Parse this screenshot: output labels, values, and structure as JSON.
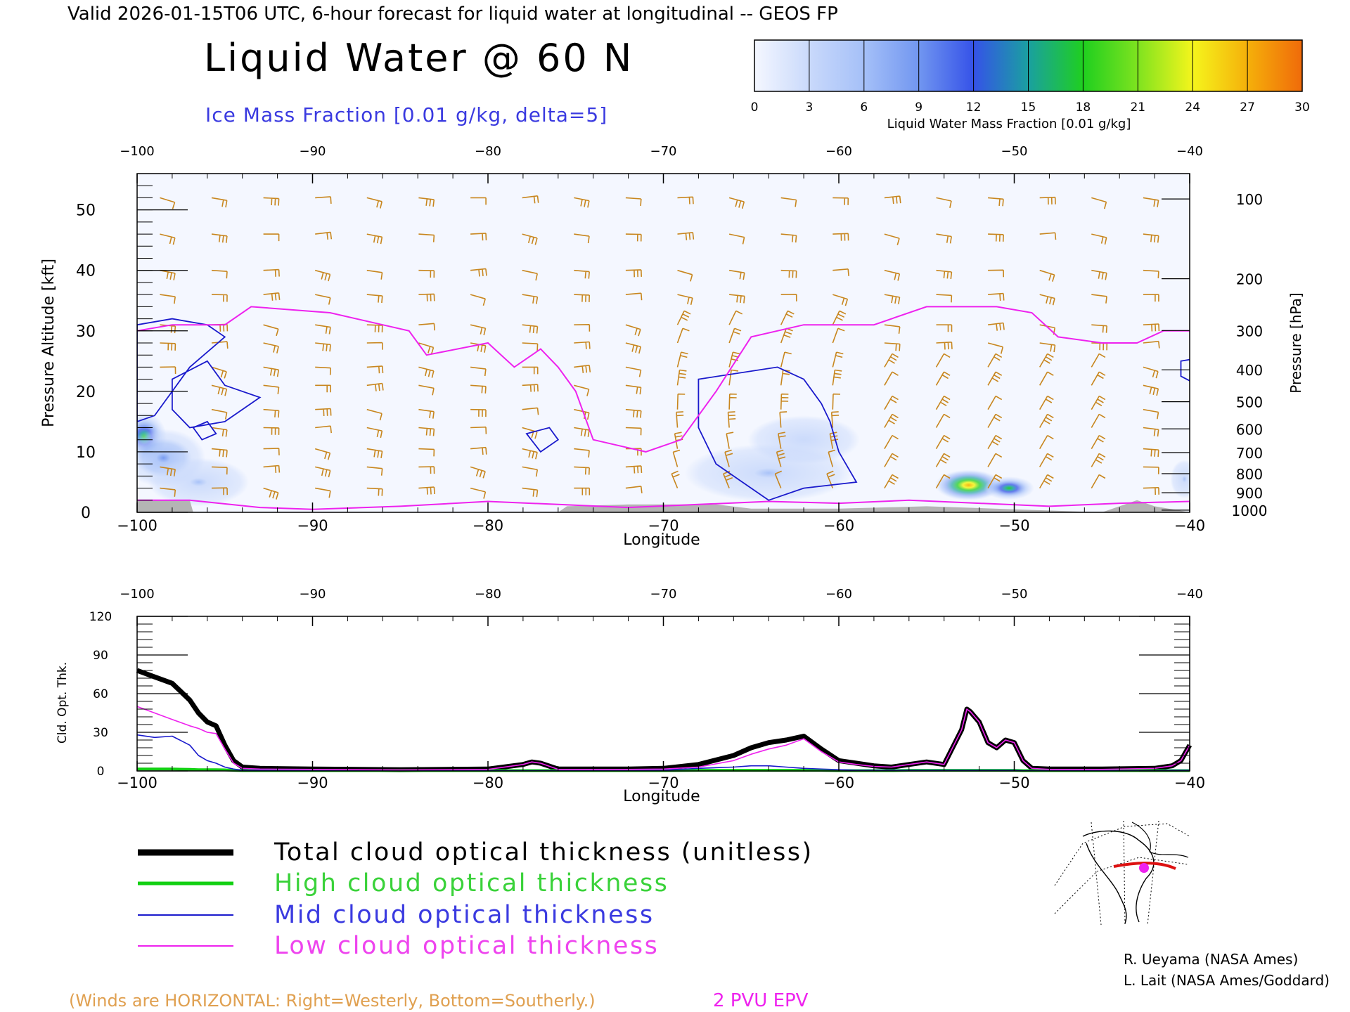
{
  "header": {
    "valid_line": "Valid 2026-01-15T06 UTC, 6-hour forecast for liquid water at longitudinal -- GEOS FP",
    "title": "Liquid Water @ 60 N",
    "subtitle": "Ice Mass Fraction [0.01 g/kg, delta=5]"
  },
  "colorbar": {
    "label": "Liquid Water Mass Fraction [0.01 g/kg]",
    "ticks": [
      "0",
      "3",
      "6",
      "9",
      "12",
      "15",
      "18",
      "21",
      "24",
      "27",
      "30"
    ],
    "colors": [
      "#f4f7ff",
      "#c9d9fb",
      "#a5c0f8",
      "#7196f0",
      "#3552e8",
      "#1aa0a0",
      "#1fcf1f",
      "#7fe31f",
      "#f5f51c",
      "#f5b00a",
      "#f06a0a",
      "#e82a0a"
    ]
  },
  "colors": {
    "ice_contour": "#1a1acc",
    "epv": "#ee22ee",
    "wind_barbs": "#c8861e",
    "total": "#000000",
    "high": "#12d012",
    "mid": "#1a1acc",
    "low": "#ee22ee",
    "terrain": "#b4b4b4"
  },
  "chart_data": [
    {
      "type": "heatmap",
      "title": "Liquid Water @ 60 N",
      "xlabel": "Longitude",
      "ylabel": "Pressure Altitude [kft]",
      "ylabel_right": "Pressure [hPa]",
      "xlim": [
        -100,
        -40
      ],
      "ylim": [
        0,
        56
      ],
      "x_ticks": [
        -100,
        -90,
        -80,
        -70,
        -60,
        -50,
        -40
      ],
      "x_tick_labels": [
        "−100",
        "−90",
        "−80",
        "−70",
        "−60",
        "−50",
        "−40"
      ],
      "y_ticks": [
        0,
        10,
        20,
        30,
        40,
        50
      ],
      "pressure_ticks": [
        100,
        200,
        300,
        400,
        500,
        600,
        700,
        800,
        900,
        1000
      ],
      "liquid_water_blobs": [
        {
          "lon": -99.6,
          "alt_kft": 12.5,
          "value": 16,
          "spread_lon": 0.8,
          "spread_alt": 2.5
        },
        {
          "lon": -98.5,
          "alt_kft": 9.0,
          "value": 7,
          "spread_lon": 1.5,
          "spread_alt": 3.0
        },
        {
          "lon": -96.5,
          "alt_kft": 5.0,
          "value": 3,
          "spread_lon": 1.8,
          "spread_alt": 2.5
        },
        {
          "lon": -64.0,
          "alt_kft": 6.5,
          "value": 3,
          "spread_lon": 3.0,
          "spread_alt": 3.0
        },
        {
          "lon": -62.0,
          "alt_kft": 12.0,
          "value": 1,
          "spread_lon": 2.0,
          "spread_alt": 2.5
        },
        {
          "lon": -52.6,
          "alt_kft": 4.5,
          "value": 26,
          "spread_lon": 1.2,
          "spread_alt": 1.6
        },
        {
          "lon": -50.3,
          "alt_kft": 4.0,
          "value": 16,
          "spread_lon": 0.9,
          "spread_alt": 1.2
        },
        {
          "lon": -40.3,
          "alt_kft": 5.5,
          "value": 3,
          "spread_lon": 0.5,
          "spread_alt": 2.0
        }
      ],
      "ice_contours": [
        [
          [
            -100,
            31
          ],
          [
            -98,
            32
          ],
          [
            -96,
            31
          ],
          [
            -95,
            29
          ],
          [
            -97,
            24
          ],
          [
            -98,
            20
          ],
          [
            -99,
            16
          ],
          [
            -100,
            15
          ]
        ],
        [
          [
            -98,
            22
          ],
          [
            -96,
            25
          ],
          [
            -95,
            21
          ],
          [
            -93,
            19
          ],
          [
            -95,
            15
          ],
          [
            -97,
            14
          ],
          [
            -98,
            17
          ]
        ],
        [
          [
            -96.8,
            14
          ],
          [
            -96,
            15
          ],
          [
            -95.5,
            13
          ],
          [
            -96.3,
            12
          ]
        ],
        [
          [
            -77.8,
            13
          ],
          [
            -76.5,
            14
          ],
          [
            -76,
            12
          ],
          [
            -77,
            10
          ]
        ],
        [
          [
            -68,
            22
          ],
          [
            -63.5,
            24
          ],
          [
            -62,
            22
          ],
          [
            -61,
            18
          ],
          [
            -60.5,
            15
          ],
          [
            -60,
            10
          ],
          [
            -59,
            5
          ],
          [
            -62,
            4
          ],
          [
            -64,
            2
          ],
          [
            -65.5,
            5
          ],
          [
            -67,
            8
          ],
          [
            -68,
            14
          ]
        ],
        [
          [
            -40.5,
            25
          ],
          [
            -39.5,
            25.5
          ],
          [
            -39.5,
            21
          ],
          [
            -40.5,
            22.5
          ]
        ]
      ],
      "epv_2pvu": [
        [
          -100,
          30
        ],
        [
          -98,
          31
        ],
        [
          -95,
          31
        ],
        [
          -93.5,
          34
        ],
        [
          -89,
          33
        ],
        [
          -86,
          31
        ],
        [
          -84.5,
          30
        ],
        [
          -83.5,
          26
        ],
        [
          -80,
          28
        ],
        [
          -78.5,
          24
        ],
        [
          -77,
          27
        ],
        [
          -76,
          24
        ],
        [
          -75,
          20
        ],
        [
          -74,
          12
        ],
        [
          -71,
          10
        ],
        [
          -69,
          12
        ],
        [
          -67,
          20
        ],
        [
          -65,
          29
        ],
        [
          -62,
          31
        ],
        [
          -58,
          31
        ],
        [
          -55,
          34
        ],
        [
          -51,
          34
        ],
        [
          -49,
          33
        ],
        [
          -47.5,
          29
        ],
        [
          -45,
          28
        ],
        [
          -43,
          28
        ],
        [
          -41.5,
          30
        ],
        [
          -40,
          30
        ]
      ],
      "epv_lower": [
        [
          -100,
          2
        ],
        [
          -97,
          2
        ],
        [
          -93,
          0.8
        ],
        [
          -90,
          0.5
        ],
        [
          -85,
          1
        ],
        [
          -80,
          1.8
        ],
        [
          -76,
          1.3
        ],
        [
          -72,
          0.8
        ],
        [
          -68,
          1.3
        ],
        [
          -64,
          1.8
        ],
        [
          -60,
          1.5
        ],
        [
          -56,
          2
        ],
        [
          -52,
          1.5
        ],
        [
          -48,
          1
        ],
        [
          -44,
          1.5
        ],
        [
          -40,
          1.8
        ]
      ],
      "terrain_kft": [
        [
          -100,
          2
        ],
        [
          -97,
          2
        ],
        [
          -96.8,
          0
        ],
        [
          -76,
          0
        ],
        [
          -75.5,
          1
        ],
        [
          -72,
          1.3
        ],
        [
          -67,
          1.3
        ],
        [
          -65,
          0.6
        ],
        [
          -60,
          0.6
        ],
        [
          -55,
          1
        ],
        [
          -49,
          0.4
        ],
        [
          -45,
          0
        ],
        [
          -43,
          2
        ],
        [
          -42,
          1
        ],
        [
          -40,
          0
        ]
      ],
      "wind_barbs": "horizontal wind barbs (westerly ~20-100 kt aloft, southerly components near -70 to -60)"
    },
    {
      "type": "line",
      "xlabel": "Longitude",
      "ylabel": "Cld. Opt. Thk.",
      "xlim": [
        -100,
        -40
      ],
      "ylim": [
        0,
        120
      ],
      "x_ticks": [
        -100,
        -90,
        -80,
        -70,
        -60,
        -50,
        -40
      ],
      "x_tick_labels": [
        "−100",
        "−90",
        "−80",
        "−70",
        "−60",
        "−50",
        "−40"
      ],
      "y_ticks": [
        0,
        30,
        60,
        90,
        120
      ],
      "x": [
        -100,
        -99,
        -98,
        -97,
        -96.5,
        -96,
        -95.5,
        -95,
        -94.5,
        -94,
        -93,
        -90,
        -85,
        -80,
        -78,
        -77.5,
        -77,
        -76,
        -72,
        -70,
        -68,
        -66,
        -65,
        -64,
        -63,
        -62,
        -61,
        -60,
        -59,
        -58,
        -57,
        -56,
        -55,
        -54,
        -53,
        -52.7,
        -52.5,
        -52,
        -51.5,
        -51,
        -50.5,
        -50,
        -49.5,
        -49,
        -48,
        -45,
        -42,
        -41,
        -40.5,
        -40
      ],
      "series": [
        {
          "name": "Total cloud optical thickness (unitless)",
          "values": [
            78,
            73,
            68,
            55,
            45,
            38,
            35,
            20,
            8,
            3,
            2,
            1.5,
            1,
            1.5,
            5,
            7,
            6,
            1.5,
            1.5,
            2,
            5,
            12,
            18,
            22,
            24,
            27,
            17,
            8,
            6,
            4,
            3,
            5,
            7,
            5,
            32,
            48,
            46,
            38,
            22,
            18,
            24,
            22,
            8,
            2,
            1.5,
            1.5,
            2,
            4,
            8,
            20
          ]
        },
        {
          "name": "High cloud optical thickness",
          "values": [
            1.5,
            1.5,
            1.5,
            1.2,
            1,
            1,
            1,
            0.8,
            0.5,
            0.3,
            0.3,
            0.3,
            0.3,
            0.3,
            0.3,
            0.3,
            0.3,
            0.3,
            0.3,
            0.3,
            0.5,
            0.5,
            0.5,
            0.5,
            0.5,
            0.5,
            0.5,
            0.3,
            0.3,
            0.3,
            0.3,
            0.5,
            0.5,
            0.5,
            0.5,
            0.5,
            0.5,
            0.5,
            0.5,
            0.5,
            0.5,
            0.5,
            0.3,
            0.3,
            0.3,
            0.3,
            0.3,
            0.3,
            0.3,
            0.3
          ]
        },
        {
          "name": "Mid cloud optical thickness",
          "values": [
            28,
            26,
            27,
            20,
            12,
            8,
            6,
            3,
            1.5,
            0.5,
            0.5,
            0.3,
            0.3,
            0.3,
            0.3,
            0.3,
            0.3,
            0.3,
            0.3,
            0.5,
            2,
            3,
            4,
            4,
            3,
            2,
            1.5,
            1,
            0.5,
            0.5,
            0.5,
            0.5,
            0.5,
            0.5,
            0.5,
            0.5,
            0.5,
            0.5,
            0.5,
            0.5,
            0.5,
            0.5,
            0.3,
            0.3,
            0.3,
            0.3,
            0.3,
            0.5,
            0.5,
            0.5
          ]
        },
        {
          "name": "Low cloud optical thickness",
          "values": [
            50,
            45,
            40,
            35,
            33,
            30,
            29,
            17,
            6,
            2,
            1.5,
            1.2,
            0.8,
            1.2,
            5,
            7,
            6,
            1.2,
            1.2,
            1.5,
            3,
            8,
            13,
            17,
            20,
            25,
            15,
            7,
            5,
            3.5,
            3,
            5,
            7,
            5,
            32,
            48,
            46,
            38,
            22,
            18,
            24,
            22,
            8,
            2,
            1.2,
            1.2,
            2,
            4,
            8,
            20
          ]
        }
      ]
    }
  ],
  "legend": {
    "total": "Total cloud optical thickness (unitless)",
    "high": "High cloud optical thickness",
    "mid": "Mid cloud optical thickness",
    "low": "Low cloud optical thickness"
  },
  "footer": {
    "winds_note": "(Winds are HORIZONTAL: Right=Westerly, Bottom=Southerly.)",
    "epv_label": "2 PVU EPV",
    "credit1": "R. Ueyama (NASA Ames)",
    "credit2": "L. Lait (NASA Ames/Goddard)"
  }
}
